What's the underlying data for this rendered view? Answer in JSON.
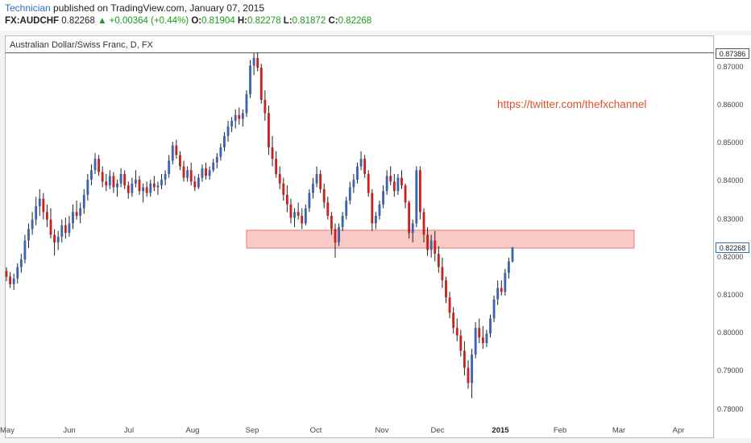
{
  "header": {
    "author": "Technician",
    "published": " published on TradingView.com, January 07, 2015",
    "symbol": "FX:AUDCHF",
    "last": "0.82268",
    "change": "▲ +0.00364 (+0.44%)",
    "open_label": "O:",
    "open": "0.81904",
    "high_label": "H:",
    "high": "0.82278",
    "low_label": "L:",
    "low": "0.81872",
    "close_label": "C:",
    "close": "0.82268"
  },
  "watermark": "https://twitter.com/thefxchannel",
  "colors": {
    "up": "#3b62b3",
    "down": "#c8221e",
    "zone_fill": "#f9c9c6",
    "zone_stroke": "#e2807a",
    "line": "#555555"
  },
  "chart_data": {
    "type": "candlestick",
    "title": "Australian Dollar/Swiss Franc, D, FX",
    "ylim": [
      0.778,
      0.874
    ],
    "y_ticks": [
      "0.78000",
      "0.79000",
      "0.80000",
      "0.81000",
      "0.82000",
      "0.83000",
      "0.84000",
      "0.85000",
      "0.86000",
      "0.87000"
    ],
    "x_ticks": [
      {
        "label": "May",
        "bold": false
      },
      {
        "label": "Jun",
        "bold": false
      },
      {
        "label": "Jul",
        "bold": false
      },
      {
        "label": "Aug",
        "bold": false
      },
      {
        "label": "Sep",
        "bold": false
      },
      {
        "label": "Oct",
        "bold": false
      },
      {
        "label": "Nov",
        "bold": false
      },
      {
        "label": "Dec",
        "bold": false
      },
      {
        "label": "2015",
        "bold": true
      },
      {
        "label": "Feb",
        "bold": false
      },
      {
        "label": "Mar",
        "bold": false
      },
      {
        "label": "Apr",
        "bold": false
      }
    ],
    "high_marker": "0.87386",
    "current_marker": "0.82268",
    "resistance_zone": {
      "from": 0.8225,
      "to": 0.8272
    },
    "candles": [
      [
        0.8165,
        0.8175,
        0.8138,
        0.815
      ],
      [
        0.815,
        0.8162,
        0.812,
        0.813
      ],
      [
        0.813,
        0.8158,
        0.8115,
        0.8145
      ],
      [
        0.8145,
        0.8185,
        0.8132,
        0.8175
      ],
      [
        0.8175,
        0.821,
        0.816,
        0.8195
      ],
      [
        0.8195,
        0.826,
        0.8185,
        0.8245
      ],
      [
        0.8245,
        0.829,
        0.8225,
        0.8275
      ],
      [
        0.8275,
        0.832,
        0.826,
        0.83
      ],
      [
        0.83,
        0.836,
        0.8285,
        0.8335
      ],
      [
        0.8335,
        0.838,
        0.831,
        0.8355
      ],
      [
        0.8355,
        0.837,
        0.83,
        0.832
      ],
      [
        0.832,
        0.834,
        0.828,
        0.83
      ],
      [
        0.83,
        0.833,
        0.825,
        0.826
      ],
      [
        0.826,
        0.8275,
        0.8205,
        0.824
      ],
      [
        0.824,
        0.827,
        0.822,
        0.8255
      ],
      [
        0.8255,
        0.83,
        0.824,
        0.8285
      ],
      [
        0.8285,
        0.8305,
        0.825,
        0.8265
      ],
      [
        0.8265,
        0.831,
        0.8255,
        0.829
      ],
      [
        0.829,
        0.834,
        0.8275,
        0.832
      ],
      [
        0.832,
        0.835,
        0.83,
        0.831
      ],
      [
        0.831,
        0.8345,
        0.829,
        0.833
      ],
      [
        0.833,
        0.838,
        0.8315,
        0.8365
      ],
      [
        0.8365,
        0.842,
        0.835,
        0.8405
      ],
      [
        0.8405,
        0.8445,
        0.839,
        0.843
      ],
      [
        0.843,
        0.8475,
        0.842,
        0.846
      ],
      [
        0.846,
        0.847,
        0.8415,
        0.8425
      ],
      [
        0.8425,
        0.844,
        0.8385,
        0.84
      ],
      [
        0.84,
        0.842,
        0.8375,
        0.839
      ],
      [
        0.839,
        0.843,
        0.838,
        0.8415
      ],
      [
        0.8415,
        0.8425,
        0.837,
        0.8385
      ],
      [
        0.8385,
        0.8405,
        0.836,
        0.8395
      ],
      [
        0.8395,
        0.8435,
        0.8385,
        0.842
      ],
      [
        0.842,
        0.843,
        0.838,
        0.839
      ],
      [
        0.839,
        0.84,
        0.8355,
        0.837
      ],
      [
        0.837,
        0.841,
        0.836,
        0.8395
      ],
      [
        0.8395,
        0.843,
        0.8385,
        0.8405
      ],
      [
        0.8405,
        0.8415,
        0.8365,
        0.8375
      ],
      [
        0.8375,
        0.8395,
        0.8345,
        0.8385
      ],
      [
        0.8385,
        0.84,
        0.836,
        0.837
      ],
      [
        0.837,
        0.8405,
        0.836,
        0.8395
      ],
      [
        0.8395,
        0.8415,
        0.8375,
        0.8385
      ],
      [
        0.8385,
        0.84,
        0.8365,
        0.839
      ],
      [
        0.839,
        0.842,
        0.838,
        0.8405
      ],
      [
        0.8405,
        0.843,
        0.839,
        0.842
      ],
      [
        0.842,
        0.847,
        0.841,
        0.8455
      ],
      [
        0.8455,
        0.8505,
        0.8445,
        0.8495
      ],
      [
        0.8495,
        0.851,
        0.846,
        0.847
      ],
      [
        0.847,
        0.848,
        0.843,
        0.844
      ],
      [
        0.844,
        0.8455,
        0.84,
        0.841
      ],
      [
        0.841,
        0.844,
        0.84,
        0.843
      ],
      [
        0.843,
        0.845,
        0.839,
        0.84
      ],
      [
        0.84,
        0.8415,
        0.8375,
        0.8385
      ],
      [
        0.8385,
        0.842,
        0.838,
        0.841
      ],
      [
        0.841,
        0.8445,
        0.84,
        0.8435
      ],
      [
        0.8435,
        0.845,
        0.8405,
        0.8415
      ],
      [
        0.8415,
        0.844,
        0.8405,
        0.843
      ],
      [
        0.843,
        0.846,
        0.8425,
        0.845
      ],
      [
        0.845,
        0.8475,
        0.8435,
        0.8465
      ],
      [
        0.8465,
        0.85,
        0.8455,
        0.849
      ],
      [
        0.849,
        0.853,
        0.848,
        0.852
      ],
      [
        0.852,
        0.856,
        0.8505,
        0.8545
      ],
      [
        0.8545,
        0.857,
        0.853,
        0.856
      ],
      [
        0.856,
        0.859,
        0.854,
        0.8575
      ],
      [
        0.8575,
        0.8595,
        0.855,
        0.8565
      ],
      [
        0.8565,
        0.859,
        0.8545,
        0.858
      ],
      [
        0.858,
        0.864,
        0.857,
        0.863
      ],
      [
        0.863,
        0.872,
        0.862,
        0.8705
      ],
      [
        0.8705,
        0.8738,
        0.868,
        0.8725
      ],
      [
        0.8725,
        0.874,
        0.869,
        0.87
      ],
      [
        0.87,
        0.871,
        0.8605,
        0.8615
      ],
      [
        0.8615,
        0.864,
        0.856,
        0.858
      ],
      [
        0.858,
        0.86,
        0.847,
        0.849
      ],
      [
        0.849,
        0.852,
        0.844,
        0.846
      ],
      [
        0.846,
        0.848,
        0.841,
        0.842
      ],
      [
        0.842,
        0.844,
        0.838,
        0.8395
      ],
      [
        0.8395,
        0.841,
        0.835,
        0.8365
      ],
      [
        0.8365,
        0.839,
        0.832,
        0.834
      ],
      [
        0.834,
        0.8355,
        0.829,
        0.8305
      ],
      [
        0.8305,
        0.833,
        0.828,
        0.832
      ],
      [
        0.832,
        0.8345,
        0.83,
        0.831
      ],
      [
        0.831,
        0.833,
        0.8275,
        0.829
      ],
      [
        0.829,
        0.834,
        0.8285,
        0.833
      ],
      [
        0.833,
        0.838,
        0.832,
        0.837
      ],
      [
        0.837,
        0.841,
        0.8355,
        0.8395
      ],
      [
        0.8395,
        0.844,
        0.8385,
        0.842
      ],
      [
        0.842,
        0.843,
        0.837,
        0.838
      ],
      [
        0.838,
        0.8395,
        0.833,
        0.8345
      ],
      [
        0.8345,
        0.836,
        0.83,
        0.831
      ],
      [
        0.831,
        0.832,
        0.826,
        0.8275
      ],
      [
        0.8275,
        0.829,
        0.82,
        0.824
      ],
      [
        0.824,
        0.829,
        0.823,
        0.828
      ],
      [
        0.828,
        0.832,
        0.827,
        0.831
      ],
      [
        0.831,
        0.836,
        0.83,
        0.835
      ],
      [
        0.835,
        0.84,
        0.834,
        0.8385
      ],
      [
        0.8385,
        0.842,
        0.837,
        0.8405
      ],
      [
        0.8405,
        0.845,
        0.8395,
        0.844
      ],
      [
        0.844,
        0.848,
        0.843,
        0.846
      ],
      [
        0.846,
        0.847,
        0.841,
        0.842
      ],
      [
        0.842,
        0.843,
        0.836,
        0.837
      ],
      [
        0.837,
        0.838,
        0.827,
        0.829
      ],
      [
        0.829,
        0.832,
        0.8275,
        0.831
      ],
      [
        0.831,
        0.835,
        0.83,
        0.834
      ],
      [
        0.834,
        0.839,
        0.833,
        0.8375
      ],
      [
        0.8375,
        0.843,
        0.8365,
        0.8415
      ],
      [
        0.8415,
        0.844,
        0.839,
        0.84
      ],
      [
        0.84,
        0.842,
        0.836,
        0.8375
      ],
      [
        0.8375,
        0.842,
        0.8365,
        0.841
      ],
      [
        0.841,
        0.843,
        0.838,
        0.839
      ],
      [
        0.839,
        0.8395,
        0.833,
        0.8345
      ],
      [
        0.8345,
        0.835,
        0.825,
        0.8265
      ],
      [
        0.8265,
        0.83,
        0.824,
        0.829
      ],
      [
        0.829,
        0.844,
        0.828,
        0.843
      ],
      [
        0.843,
        0.844,
        0.83,
        0.832
      ],
      [
        0.832,
        0.833,
        0.824,
        0.826
      ],
      [
        0.826,
        0.828,
        0.8205,
        0.822
      ],
      [
        0.822,
        0.826,
        0.82,
        0.8245
      ],
      [
        0.8245,
        0.827,
        0.819,
        0.821
      ],
      [
        0.821,
        0.823,
        0.816,
        0.8175
      ],
      [
        0.8175,
        0.82,
        0.812,
        0.814
      ],
      [
        0.814,
        0.815,
        0.808,
        0.8095
      ],
      [
        0.8095,
        0.811,
        0.804,
        0.8055
      ],
      [
        0.8055,
        0.807,
        0.8,
        0.8015
      ],
      [
        0.8015,
        0.804,
        0.798,
        0.7995
      ],
      [
        0.7995,
        0.801,
        0.794,
        0.7955
      ],
      [
        0.7955,
        0.798,
        0.789,
        0.791
      ],
      [
        0.791,
        0.793,
        0.7855,
        0.787
      ],
      [
        0.787,
        0.796,
        0.783,
        0.7945
      ],
      [
        0.7945,
        0.803,
        0.7935,
        0.8015
      ],
      [
        0.8015,
        0.804,
        0.7975,
        0.799
      ],
      [
        0.799,
        0.802,
        0.796,
        0.7975
      ],
      [
        0.7975,
        0.801,
        0.7965,
        0.8
      ],
      [
        0.8,
        0.805,
        0.799,
        0.804
      ],
      [
        0.804,
        0.81,
        0.803,
        0.809
      ],
      [
        0.809,
        0.814,
        0.8075,
        0.812
      ],
      [
        0.812,
        0.814,
        0.81,
        0.811
      ],
      [
        0.811,
        0.817,
        0.81,
        0.816
      ],
      [
        0.816,
        0.82,
        0.8145,
        0.819
      ],
      [
        0.819,
        0.8228,
        0.8187,
        0.8227
      ]
    ]
  }
}
